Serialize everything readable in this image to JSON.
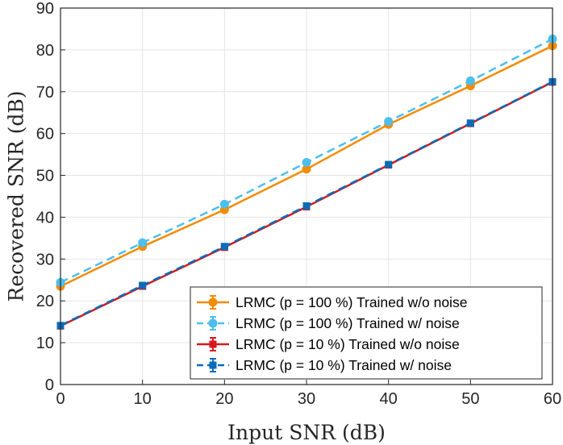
{
  "chart_data": {
    "type": "line",
    "xlabel": "Input SNR (dB)",
    "ylabel": "Recovered SNR (dB)",
    "xlim": [
      0,
      60
    ],
    "ylim": [
      0,
      90
    ],
    "xticks": [
      "0",
      "10",
      "20",
      "30",
      "40",
      "50",
      "60"
    ],
    "yticks": [
      "0",
      "10",
      "20",
      "30",
      "40",
      "50",
      "60",
      "70",
      "80",
      "90"
    ],
    "grid": true,
    "legend_position": "bottom-right",
    "x": [
      0,
      10,
      20,
      30,
      40,
      50,
      60
    ],
    "series": [
      {
        "name": "LRMC (p = 100 %) Trained w/o noise",
        "values": [
          23.5,
          33.0,
          41.8,
          51.5,
          62.2,
          71.4,
          81.0
        ],
        "color": "#f28c00",
        "dash": "solid",
        "marker": "circle"
      },
      {
        "name": "LRMC (p = 100 %) Trained w/ noise",
        "values": [
          24.4,
          33.9,
          43.1,
          53.1,
          62.9,
          72.6,
          82.6
        ],
        "color": "#4dbeee",
        "dash": "dashed",
        "marker": "circle"
      },
      {
        "name": "LRMC (p = 10 %) Trained w/o noise",
        "values": [
          14.0,
          23.5,
          32.8,
          42.5,
          52.5,
          62.4,
          72.3
        ],
        "color": "#d7191c",
        "dash": "solid",
        "marker": "square"
      },
      {
        "name": "LRMC (p = 10 %) Trained w/ noise",
        "values": [
          14.1,
          23.7,
          33.0,
          42.7,
          52.6,
          62.5,
          72.4
        ],
        "color": "#0a6bb8",
        "dash": "dashed",
        "marker": "square"
      }
    ]
  }
}
